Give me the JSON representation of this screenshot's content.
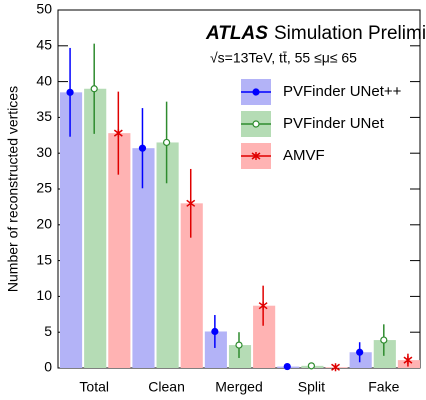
{
  "chart_data": {
    "type": "bar",
    "title": "ATLAS",
    "subtitle": "Simulation Preliminary",
    "annotation": "√s=13TeV, tt̄, 55 ≤μ≤ 65",
    "ylabel": "Number of reconstructed vertices",
    "categories": [
      "Total",
      "Clean",
      "Merged",
      "Split",
      "Fake"
    ],
    "series": [
      {
        "name": "PVFinder UNet++",
        "color": "#0000ff",
        "bar_color": "#b3b3f7",
        "marker": "filled-circle",
        "values": [
          38.5,
          30.7,
          5.1,
          0.2,
          2.2
        ],
        "errors": [
          6.2,
          5.6,
          2.3,
          0.2,
          1.4
        ]
      },
      {
        "name": "PVFinder UNet",
        "color": "#2e8b2e",
        "bar_color": "#b5dcb5",
        "marker": "open-circle",
        "values": [
          39,
          31.5,
          3.2,
          0.3,
          3.9
        ],
        "errors": [
          6.3,
          5.7,
          1.8,
          0.2,
          2.2
        ]
      },
      {
        "name": "AMVF",
        "color": "#e00000",
        "bar_color": "#ffb3b3",
        "marker": "star",
        "values": [
          32.8,
          23,
          8.7,
          0.1,
          1.1
        ],
        "errors": [
          5.8,
          4.8,
          2.8,
          0.2,
          0.9
        ]
      }
    ],
    "ylim": [
      0,
      50
    ],
    "yticks": [
      0,
      5,
      10,
      15,
      20,
      25,
      30,
      35,
      40,
      45,
      50
    ],
    "legend": "upper-right"
  }
}
